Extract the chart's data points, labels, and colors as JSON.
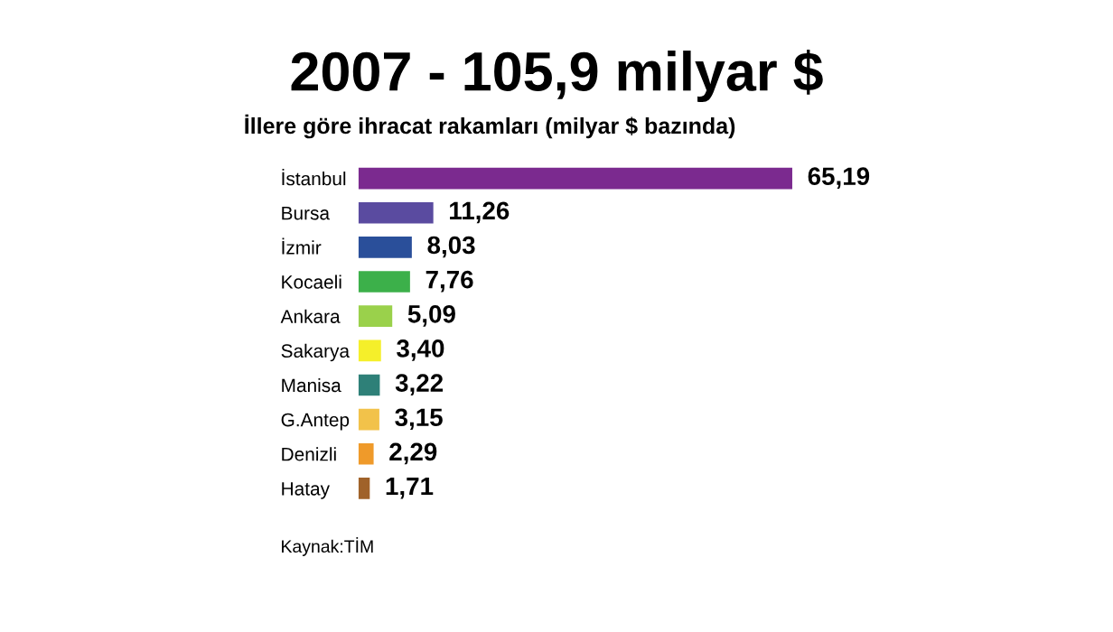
{
  "chart_data": {
    "type": "bar",
    "orientation": "horizontal",
    "title": "2007 - 105,9 milyar $",
    "subtitle": "İllere göre ihracat rakamları (milyar $ bazında)",
    "categories": [
      "İstanbul",
      "Bursa",
      "İzmir",
      "Kocaeli",
      "Ankara",
      "Sakarya",
      "Manisa",
      "G.Antep",
      "Denizli",
      "Hatay"
    ],
    "values": [
      65.19,
      11.26,
      8.03,
      7.76,
      5.09,
      3.4,
      3.22,
      3.15,
      2.29,
      1.71
    ],
    "value_labels": [
      "65,19",
      "11,26",
      "8,03",
      "7,76",
      "5,09",
      "3,40",
      "3,22",
      "3,15",
      "2,29",
      "1,71"
    ],
    "colors": [
      "#7b2a8f",
      "#5a4ba0",
      "#2a4f9a",
      "#3cb04a",
      "#9ad14b",
      "#f5ef2a",
      "#2e8078",
      "#f2c24a",
      "#ef9a2a",
      "#a0622a"
    ],
    "annotations": [
      "Kaynak:TİM"
    ],
    "grid": false,
    "legend": false
  }
}
